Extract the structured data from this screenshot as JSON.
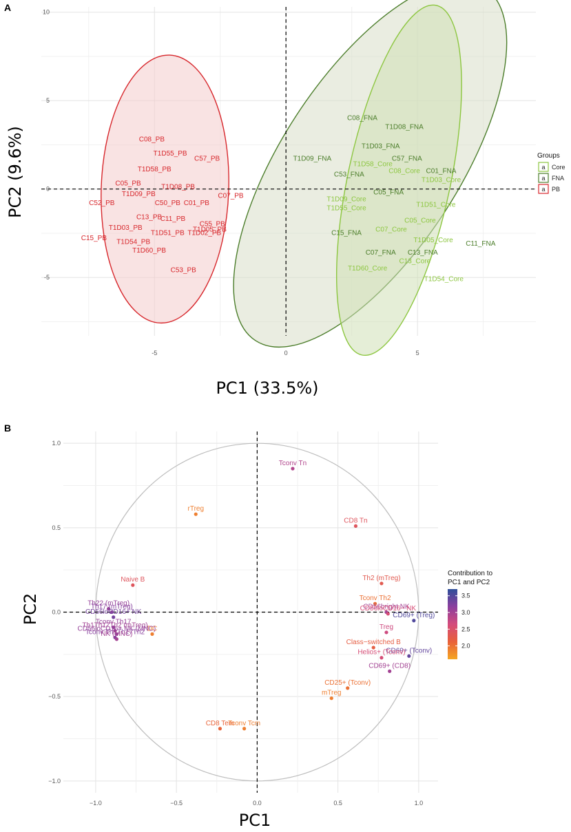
{
  "chart_data": [
    {
      "type": "scatter",
      "panel": "A",
      "xlabel": "PC1 (33.5%)",
      "ylabel": "PC2 (9.6%)",
      "xlim": [
        -9.3,
        9.5
      ],
      "ylim": [
        -8.3,
        10.3
      ],
      "xticks": [
        -5,
        0,
        5
      ],
      "yticks": [
        -5,
        0,
        5,
        10
      ],
      "grid": true,
      "legend": {
        "title": "Groups",
        "position": "right",
        "symbol": "a",
        "entries": [
          {
            "name": "Core",
            "color": "#8cc63f"
          },
          {
            "name": "FNA",
            "color": "#4b7d2a"
          },
          {
            "name": "PB",
            "color": "#d7262b"
          }
        ]
      },
      "ellipses": [
        {
          "group": "FNA",
          "cx": 3.2,
          "cy": 1.4,
          "rx": 8.0,
          "ry": 5.0,
          "angle": -57,
          "fill": "#d9dec9",
          "stroke": "#4b7d2a"
        },
        {
          "group": "Core",
          "cx": 4.3,
          "cy": 0.5,
          "rx": 6.8,
          "ry": 2.9,
          "angle": -78,
          "fill": "#cfe0b6",
          "stroke": "#8cc63f"
        },
        {
          "group": "PB",
          "cx": -4.6,
          "cy": 0.0,
          "rx": 5.1,
          "ry": 3.6,
          "angle": -88,
          "fill": "#f4cccc",
          "stroke": "#d7262b"
        }
      ],
      "points": [
        {
          "label": "C08_PB",
          "group": "PB",
          "x": -5.1,
          "y": 2.7
        },
        {
          "label": "T1D55_PB",
          "group": "PB",
          "x": -4.4,
          "y": 1.9
        },
        {
          "label": "C57_PB",
          "group": "PB",
          "x": -3.0,
          "y": 1.6
        },
        {
          "label": "T1D58_PB",
          "group": "PB",
          "x": -5.0,
          "y": 1.0
        },
        {
          "label": "C05_PB",
          "group": "PB",
          "x": -6.0,
          "y": 0.2
        },
        {
          "label": "T1D08_PB",
          "group": "PB",
          "x": -4.1,
          "y": 0.0
        },
        {
          "label": "T1D09_PB",
          "group": "PB",
          "x": -5.6,
          "y": -0.4
        },
        {
          "label": "C07_PB",
          "group": "PB",
          "x": -2.1,
          "y": -0.5
        },
        {
          "label": "C52_PB",
          "group": "PB",
          "x": -7.0,
          "y": -0.9
        },
        {
          "label": "C50_PB",
          "group": "PB",
          "x": -4.5,
          "y": -0.9
        },
        {
          "label": "C01_PB",
          "group": "PB",
          "x": -3.4,
          "y": -0.9
        },
        {
          "label": "C13_PB",
          "group": "PB",
          "x": -5.2,
          "y": -1.7
        },
        {
          "label": "C11_PB",
          "group": "PB",
          "x": -4.3,
          "y": -1.8
        },
        {
          "label": "C55_PB",
          "group": "PB",
          "x": -2.8,
          "y": -2.1
        },
        {
          "label": "T1D03_PB",
          "group": "PB",
          "x": -6.1,
          "y": -2.3
        },
        {
          "label": "T1D05_PB",
          "group": "PB",
          "x": -2.9,
          "y": -2.4
        },
        {
          "label": "T1D51_PB",
          "group": "PB",
          "x": -4.5,
          "y": -2.6
        },
        {
          "label": "T1D02_PB",
          "group": "PB",
          "x": -3.1,
          "y": -2.6
        },
        {
          "label": "C15_PB",
          "group": "PB",
          "x": -7.3,
          "y": -2.9
        },
        {
          "label": "T1D54_PB",
          "group": "PB",
          "x": -5.8,
          "y": -3.1
        },
        {
          "label": "T1D60_PB",
          "group": "PB",
          "x": -5.2,
          "y": -3.6
        },
        {
          "label": "C53_PB",
          "group": "PB",
          "x": -3.9,
          "y": -4.7
        },
        {
          "label": "C08_FNA",
          "group": "FNA",
          "x": 2.9,
          "y": 3.9
        },
        {
          "label": "T1D08_FNA",
          "group": "FNA",
          "x": 4.5,
          "y": 3.4
        },
        {
          "label": "T1D03_FNA",
          "group": "FNA",
          "x": 3.6,
          "y": 2.3
        },
        {
          "label": "T1D09_FNA",
          "group": "FNA",
          "x": 1.0,
          "y": 1.6
        },
        {
          "label": "C57_FNA",
          "group": "FNA",
          "x": 4.6,
          "y": 1.6
        },
        {
          "label": "C01_FNA",
          "group": "FNA",
          "x": 5.9,
          "y": 0.9
        },
        {
          "label": "C53_FNA",
          "group": "FNA",
          "x": 2.4,
          "y": 0.7
        },
        {
          "label": "C05_FNA",
          "group": "FNA",
          "x": 3.9,
          "y": -0.3
        },
        {
          "label": "C15_FNA",
          "group": "FNA",
          "x": 2.3,
          "y": -2.6
        },
        {
          "label": "C07_FNA",
          "group": "FNA",
          "x": 3.6,
          "y": -3.7
        },
        {
          "label": "C13_FNA",
          "group": "FNA",
          "x": 5.2,
          "y": -3.7
        },
        {
          "label": "C11_FNA",
          "group": "FNA",
          "x": 7.4,
          "y": -3.2
        },
        {
          "label": "T1D58_Core",
          "group": "Core",
          "x": 3.3,
          "y": 1.3
        },
        {
          "label": "C08_Core",
          "group": "Core",
          "x": 4.5,
          "y": 0.9
        },
        {
          "label": "T1D03_Core",
          "group": "Core",
          "x": 5.9,
          "y": 0.4
        },
        {
          "label": "T1D09_Core",
          "group": "Core",
          "x": 2.3,
          "y": -0.7
        },
        {
          "label": "T1D55_Core",
          "group": "Core",
          "x": 2.3,
          "y": -1.2
        },
        {
          "label": "T1D51_Core",
          "group": "Core",
          "x": 5.7,
          "y": -1.0
        },
        {
          "label": "C05_Core",
          "group": "Core",
          "x": 5.1,
          "y": -1.9
        },
        {
          "label": "C07_Core",
          "group": "Core",
          "x": 4.0,
          "y": -2.4
        },
        {
          "label": "T1D05_Core",
          "group": "Core",
          "x": 5.6,
          "y": -3.0
        },
        {
          "label": "C13_Core",
          "group": "Core",
          "x": 4.9,
          "y": -4.2
        },
        {
          "label": "T1D60_Core",
          "group": "Core",
          "x": 3.1,
          "y": -4.6
        },
        {
          "label": "T1D54_Core",
          "group": "Core",
          "x": 6.0,
          "y": -5.2
        }
      ]
    },
    {
      "type": "scatter",
      "panel": "B",
      "xlabel": "PC1",
      "ylabel": "PC2",
      "xlim": [
        -1.2,
        1.12
      ],
      "ylim": [
        -1.07,
        1.07
      ],
      "xticks": [
        -1.0,
        -0.5,
        0.0,
        0.5,
        1.0
      ],
      "yticks": [
        -1.0,
        -0.5,
        0.0,
        0.5,
        1.0
      ],
      "tick_labels_x": [
        "−1.0",
        "−0.5",
        "0.0",
        "0.5",
        "1.0"
      ],
      "tick_labels_y": [
        "−1.0",
        "−0.5",
        "0.0",
        "0.5",
        "1.0"
      ],
      "grid": true,
      "unit_circle": true,
      "colorbar": {
        "title_line1": "Contribution to",
        "title_line2": "PC1 and PC2",
        "min": 1.6,
        "max": 3.7,
        "ticks": [
          3.5,
          3.0,
          2.5,
          2.0
        ],
        "colors": [
          "#f5a623",
          "#e8613a",
          "#d44b7c",
          "#8b3f9e",
          "#2e4f9a"
        ]
      },
      "points": [
        {
          "label": "Tconv Tn",
          "x": 0.22,
          "y": 0.85,
          "c": 2.9
        },
        {
          "label": "rTreg",
          "x": -0.38,
          "y": 0.58,
          "c": 1.9
        },
        {
          "label": "CD8 Tn",
          "x": 0.61,
          "y": 0.51,
          "c": 2.4
        },
        {
          "label": "Naive B",
          "x": -0.77,
          "y": 0.16,
          "c": 2.4
        },
        {
          "label": "Th2 (mTreg)",
          "x": 0.77,
          "y": 0.17,
          "c": 2.3
        },
        {
          "label": "Tconv Th2",
          "x": 0.73,
          "y": 0.05,
          "c": 2.0
        },
        {
          "label": "CD56bright NK",
          "x": 0.8,
          "y": 0.0,
          "c": 3.0
        },
        {
          "label": "Th22 (mTreg)",
          "x": -0.92,
          "y": 0.02,
          "c": 3.1
        },
        {
          "label": "Th17 (mTreg)",
          "x": -0.9,
          "y": 0.0,
          "c": 3.2
        },
        {
          "label": "CD56loCD16+ NK",
          "x": -0.89,
          "y": -0.03,
          "c": 3.3
        },
        {
          "label": "CD56loCD16− NK",
          "x": 0.81,
          "y": -0.01,
          "c": 2.6
        },
        {
          "label": "CD69+ (Treg)",
          "x": 0.97,
          "y": -0.05,
          "c": 3.5
        },
        {
          "label": "Tconv Th17",
          "x": -0.89,
          "y": -0.09,
          "c": 3.1
        },
        {
          "label": "DC",
          "x": -0.65,
          "y": -0.13,
          "c": 1.9
        },
        {
          "label": "Th1Th17Th2 (mTreg)",
          "x": -0.88,
          "y": -0.11,
          "c": 3.0
        },
        {
          "label": "Treg",
          "x": 0.8,
          "y": -0.12,
          "c": 2.7
        },
        {
          "label": "Tconv Th1Th17Th2",
          "x": -0.88,
          "y": -0.15,
          "c": 3.2
        },
        {
          "label": "CD56loCD16+ NK (MNC)",
          "x": -0.87,
          "y": -0.13,
          "c": 3.1
        },
        {
          "label": "NK (MNC)",
          "x": -0.87,
          "y": -0.16,
          "c": 3.0
        },
        {
          "label": "Class−switched B",
          "x": 0.72,
          "y": -0.21,
          "c": 2.2
        },
        {
          "label": "CD69+ (Tconv)",
          "x": 0.94,
          "y": -0.26,
          "c": 3.4
        },
        {
          "label": "Helios+ (Tconv)",
          "x": 0.77,
          "y": -0.27,
          "c": 2.6
        },
        {
          "label": "CD69+ (CD8)",
          "x": 0.82,
          "y": -0.35,
          "c": 3.0
        },
        {
          "label": "CD25+ (Tconv)",
          "x": 0.56,
          "y": -0.45,
          "c": 2.0
        },
        {
          "label": "mTreg",
          "x": 0.46,
          "y": -0.51,
          "c": 1.9
        },
        {
          "label": "CD8 Tem",
          "x": -0.23,
          "y": -0.69,
          "c": 2.1
        },
        {
          "label": "Tconv Tcm",
          "x": -0.08,
          "y": -0.69,
          "c": 1.9
        }
      ]
    }
  ]
}
